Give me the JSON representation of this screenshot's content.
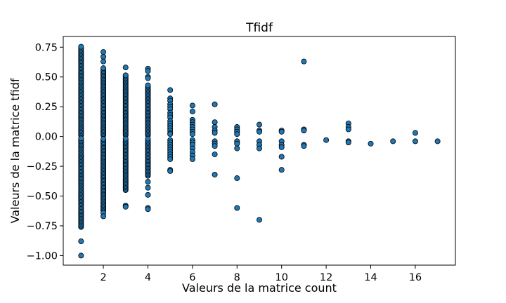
{
  "chart_data": {
    "type": "scatter",
    "title": "Tfidf",
    "xlabel": "Valeurs de la matrice count",
    "ylabel": "Valeurs de la matrice tfidf",
    "xlim": [
      0.2,
      17.8
    ],
    "ylim": [
      -1.08,
      0.84
    ],
    "xticks": [
      2,
      4,
      6,
      8,
      10,
      12,
      14,
      16
    ],
    "yticks": [
      -1.0,
      -0.75,
      -0.5,
      -0.25,
      0.0,
      0.25,
      0.5,
      0.75
    ],
    "ytick_labels": [
      "−1.00",
      "−0.75",
      "−0.50",
      "−0.25",
      "0.00",
      "0.25",
      "0.50",
      "0.75"
    ],
    "grid": false,
    "marker_color": "#1f77b4",
    "marker_edge_color": "#000000",
    "points": [
      {
        "x": 1,
        "dense_ranges": [
          [
            0.01,
            0.76
          ],
          [
            -0.76,
            -0.01
          ]
        ],
        "values": [
          -0.88,
          -1.0
        ]
      },
      {
        "x": 2,
        "dense_ranges": [
          [
            0.01,
            0.58
          ],
          [
            -0.62,
            -0.01
          ]
        ],
        "values": [
          0.71,
          0.67,
          0.63,
          -0.64,
          -0.67
        ]
      },
      {
        "x": 3,
        "dense_ranges": [
          [
            0.01,
            0.52
          ],
          [
            -0.45,
            -0.01
          ]
        ],
        "values": [
          0.58,
          -0.58,
          -0.59
        ]
      },
      {
        "x": 4,
        "dense_ranges": [
          [
            0.01,
            0.43
          ],
          [
            -0.33,
            -0.01
          ]
        ],
        "values": [
          0.57,
          0.55,
          0.5,
          0.49,
          -0.38,
          -0.43,
          -0.49,
          -0.6,
          -0.61
        ]
      },
      {
        "x": 5,
        "values": [
          0.39,
          0.32,
          0.3,
          0.27,
          0.25,
          0.23,
          0.2,
          0.18,
          0.16,
          0.13,
          0.11,
          0.09,
          0.07,
          0.05,
          0.03,
          0.02,
          -0.03,
          -0.05,
          -0.07,
          -0.09,
          -0.11,
          -0.13,
          -0.15,
          -0.17,
          -0.19,
          -0.28,
          -0.29
        ]
      },
      {
        "x": 6,
        "values": [
          0.26,
          0.21,
          0.14,
          0.12,
          0.1,
          0.08,
          0.06,
          0.04,
          0.02,
          -0.03,
          -0.05,
          -0.07,
          -0.1,
          -0.13,
          -0.16,
          -0.19
        ]
      },
      {
        "x": 7,
        "values": [
          0.27,
          0.12,
          0.08,
          0.05,
          0.03,
          -0.04,
          -0.06,
          -0.08,
          -0.15,
          -0.32
        ]
      },
      {
        "x": 8,
        "values": [
          0.08,
          0.06,
          0.04,
          0.02,
          -0.04,
          -0.06,
          -0.1,
          -0.35,
          -0.6
        ]
      },
      {
        "x": 9,
        "values": [
          0.1,
          0.05,
          0.04,
          -0.04,
          -0.07,
          -0.1,
          -0.7
        ]
      },
      {
        "x": 10,
        "values": [
          0.05,
          0.04,
          -0.04,
          -0.07,
          -0.09,
          -0.17,
          -0.28
        ]
      },
      {
        "x": 11,
        "values": [
          0.63,
          0.06,
          0.05,
          -0.07,
          -0.08
        ]
      },
      {
        "x": 12,
        "values": [
          -0.03
        ]
      },
      {
        "x": 13,
        "values": [
          0.11,
          0.08,
          0.06,
          -0.04,
          -0.05
        ]
      },
      {
        "x": 14,
        "values": [
          -0.06
        ]
      },
      {
        "x": 15,
        "values": [
          -0.04
        ]
      },
      {
        "x": 16,
        "values": [
          0.03,
          -0.04
        ]
      },
      {
        "x": 17,
        "values": [
          -0.04
        ]
      }
    ]
  }
}
